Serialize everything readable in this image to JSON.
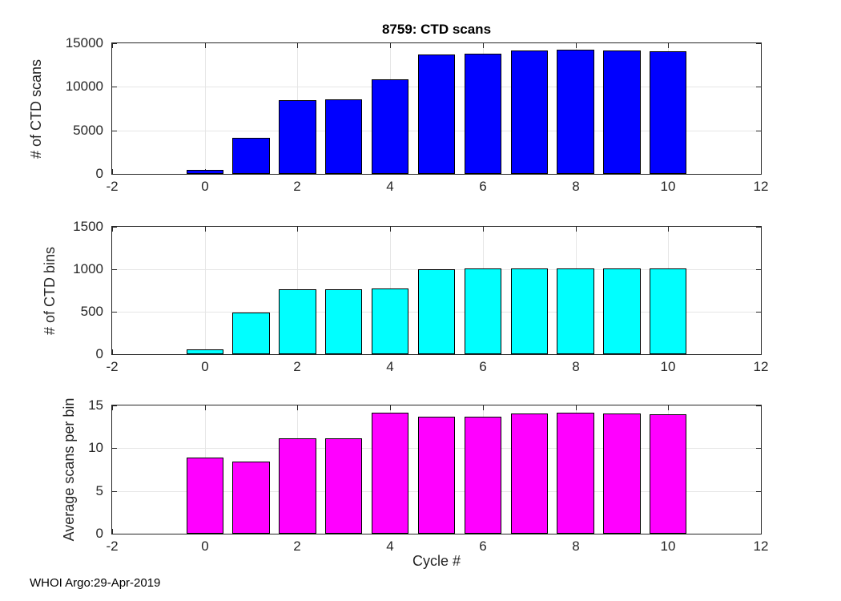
{
  "figure": {
    "title": "8759: CTD scans",
    "xlabel": "Cycle #",
    "footer": "WHOI Argo:29-Apr-2019",
    "background_color": "#ffffff",
    "axis_color": "#262626",
    "grid_color": "#e6e6e6"
  },
  "chart_data": [
    {
      "type": "bar",
      "id": "ctd-scans",
      "title": "8759: CTD scans",
      "ylabel": "# of CTD scans",
      "xlabel": "",
      "x": [
        0,
        1,
        2,
        3,
        4,
        5,
        6,
        7,
        8,
        9,
        10
      ],
      "values": [
        500,
        4100,
        8500,
        8550,
        10900,
        13700,
        13800,
        14200,
        14300,
        14200,
        14050
      ],
      "bar_color": "#0000ff",
      "bar_edge_color": "#000000",
      "bar_width": 0.8,
      "xlim": [
        -2,
        12
      ],
      "ylim": [
        0,
        15000
      ],
      "xticks": [
        -2,
        0,
        2,
        4,
        6,
        8,
        10,
        12
      ],
      "yticks": [
        0,
        5000,
        10000,
        15000
      ],
      "grid": true,
      "legend": null
    },
    {
      "type": "bar",
      "id": "ctd-bins",
      "title": "",
      "ylabel": "# of CTD bins",
      "xlabel": "",
      "x": [
        0,
        1,
        2,
        3,
        4,
        5,
        6,
        7,
        8,
        9,
        10
      ],
      "values": [
        60,
        490,
        760,
        765,
        770,
        1000,
        1010,
        1010,
        1010,
        1010,
        1010
      ],
      "bar_color": "#00ffff",
      "bar_edge_color": "#000000",
      "bar_width": 0.8,
      "xlim": [
        -2,
        12
      ],
      "ylim": [
        0,
        1500
      ],
      "xticks": [
        -2,
        0,
        2,
        4,
        6,
        8,
        10,
        12
      ],
      "yticks": [
        0,
        500,
        1000,
        1500
      ],
      "grid": true,
      "legend": null
    },
    {
      "type": "bar",
      "id": "avg-scans-per-bin",
      "title": "",
      "ylabel": "Average scans per bin",
      "xlabel": "Cycle #",
      "x": [
        0,
        1,
        2,
        3,
        4,
        5,
        6,
        7,
        8,
        9,
        10
      ],
      "values": [
        8.9,
        8.4,
        11.2,
        11.2,
        14.15,
        13.7,
        13.65,
        14.1,
        14.2,
        14.1,
        13.95
      ],
      "bar_color": "#ff00ff",
      "bar_edge_color": "#000000",
      "bar_width": 0.8,
      "xlim": [
        -2,
        12
      ],
      "ylim": [
        0,
        15
      ],
      "xticks": [
        -2,
        0,
        2,
        4,
        6,
        8,
        10,
        12
      ],
      "yticks": [
        0,
        5,
        10,
        15
      ],
      "grid": true,
      "legend": null
    }
  ]
}
